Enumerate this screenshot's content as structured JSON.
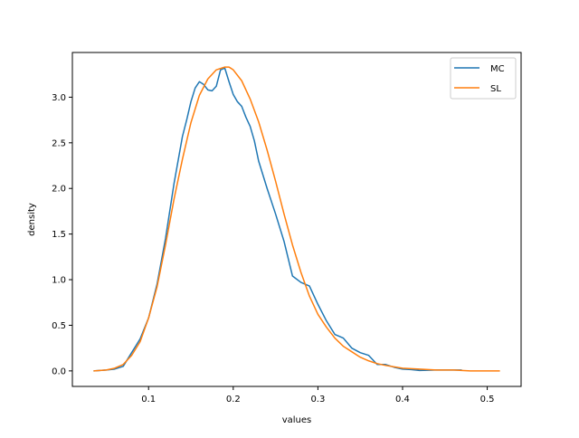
{
  "chart_data": {
    "type": "line",
    "title": "",
    "xlabel": "values",
    "ylabel": "density",
    "xlim": [
      0.01,
      0.54
    ],
    "ylim": [
      -0.17,
      3.49
    ],
    "xticks": [
      0.1,
      0.2,
      0.3,
      0.4,
      0.5
    ],
    "xtick_labels": [
      "0.1",
      "0.2",
      "0.3",
      "0.4",
      "0.5"
    ],
    "yticks": [
      0.0,
      0.5,
      1.0,
      1.5,
      2.0,
      2.5,
      3.0
    ],
    "ytick_labels": [
      "0.0",
      "0.5",
      "1.0",
      "1.5",
      "2.0",
      "2.5",
      "3.0"
    ],
    "grid": false,
    "legend_position": "top-right",
    "series": [
      {
        "name": "MC",
        "color": "#1f77b4",
        "x": [
          0.035,
          0.05,
          0.06,
          0.07,
          0.08,
          0.09,
          0.1,
          0.11,
          0.12,
          0.13,
          0.14,
          0.145,
          0.15,
          0.155,
          0.16,
          0.165,
          0.17,
          0.175,
          0.18,
          0.185,
          0.19,
          0.195,
          0.2,
          0.205,
          0.21,
          0.215,
          0.22,
          0.225,
          0.23,
          0.235,
          0.24,
          0.25,
          0.26,
          0.27,
          0.28,
          0.29,
          0.3,
          0.31,
          0.32,
          0.33,
          0.34,
          0.35,
          0.36,
          0.37,
          0.38,
          0.39,
          0.4,
          0.41,
          0.42,
          0.44,
          0.46,
          0.47
        ],
        "y": [
          0.0,
          0.01,
          0.02,
          0.05,
          0.2,
          0.35,
          0.58,
          0.95,
          1.45,
          2.05,
          2.57,
          2.75,
          2.95,
          3.1,
          3.17,
          3.14,
          3.08,
          3.07,
          3.12,
          3.3,
          3.32,
          3.17,
          3.03,
          2.95,
          2.9,
          2.78,
          2.68,
          2.52,
          2.3,
          2.15,
          2.0,
          1.72,
          1.42,
          1.04,
          0.97,
          0.93,
          0.73,
          0.55,
          0.4,
          0.36,
          0.25,
          0.2,
          0.17,
          0.07,
          0.07,
          0.04,
          0.02,
          0.015,
          0.005,
          0.01,
          0.01,
          0.01
        ]
      },
      {
        "name": "SL",
        "color": "#ff7f0e",
        "x": [
          0.035,
          0.05,
          0.06,
          0.07,
          0.08,
          0.09,
          0.1,
          0.11,
          0.12,
          0.13,
          0.14,
          0.15,
          0.16,
          0.17,
          0.18,
          0.19,
          0.195,
          0.2,
          0.21,
          0.22,
          0.23,
          0.24,
          0.25,
          0.26,
          0.27,
          0.28,
          0.29,
          0.3,
          0.31,
          0.32,
          0.33,
          0.34,
          0.35,
          0.36,
          0.37,
          0.38,
          0.4,
          0.42,
          0.44,
          0.46,
          0.48,
          0.5,
          0.515
        ],
        "y": [
          0.0,
          0.01,
          0.03,
          0.07,
          0.17,
          0.32,
          0.58,
          0.92,
          1.38,
          1.88,
          2.32,
          2.72,
          3.02,
          3.2,
          3.3,
          3.33,
          3.33,
          3.3,
          3.18,
          2.98,
          2.73,
          2.42,
          2.08,
          1.72,
          1.38,
          1.08,
          0.82,
          0.62,
          0.48,
          0.36,
          0.27,
          0.21,
          0.15,
          0.11,
          0.08,
          0.06,
          0.03,
          0.02,
          0.01,
          0.01,
          0.0,
          0.0,
          0.0
        ]
      }
    ]
  }
}
